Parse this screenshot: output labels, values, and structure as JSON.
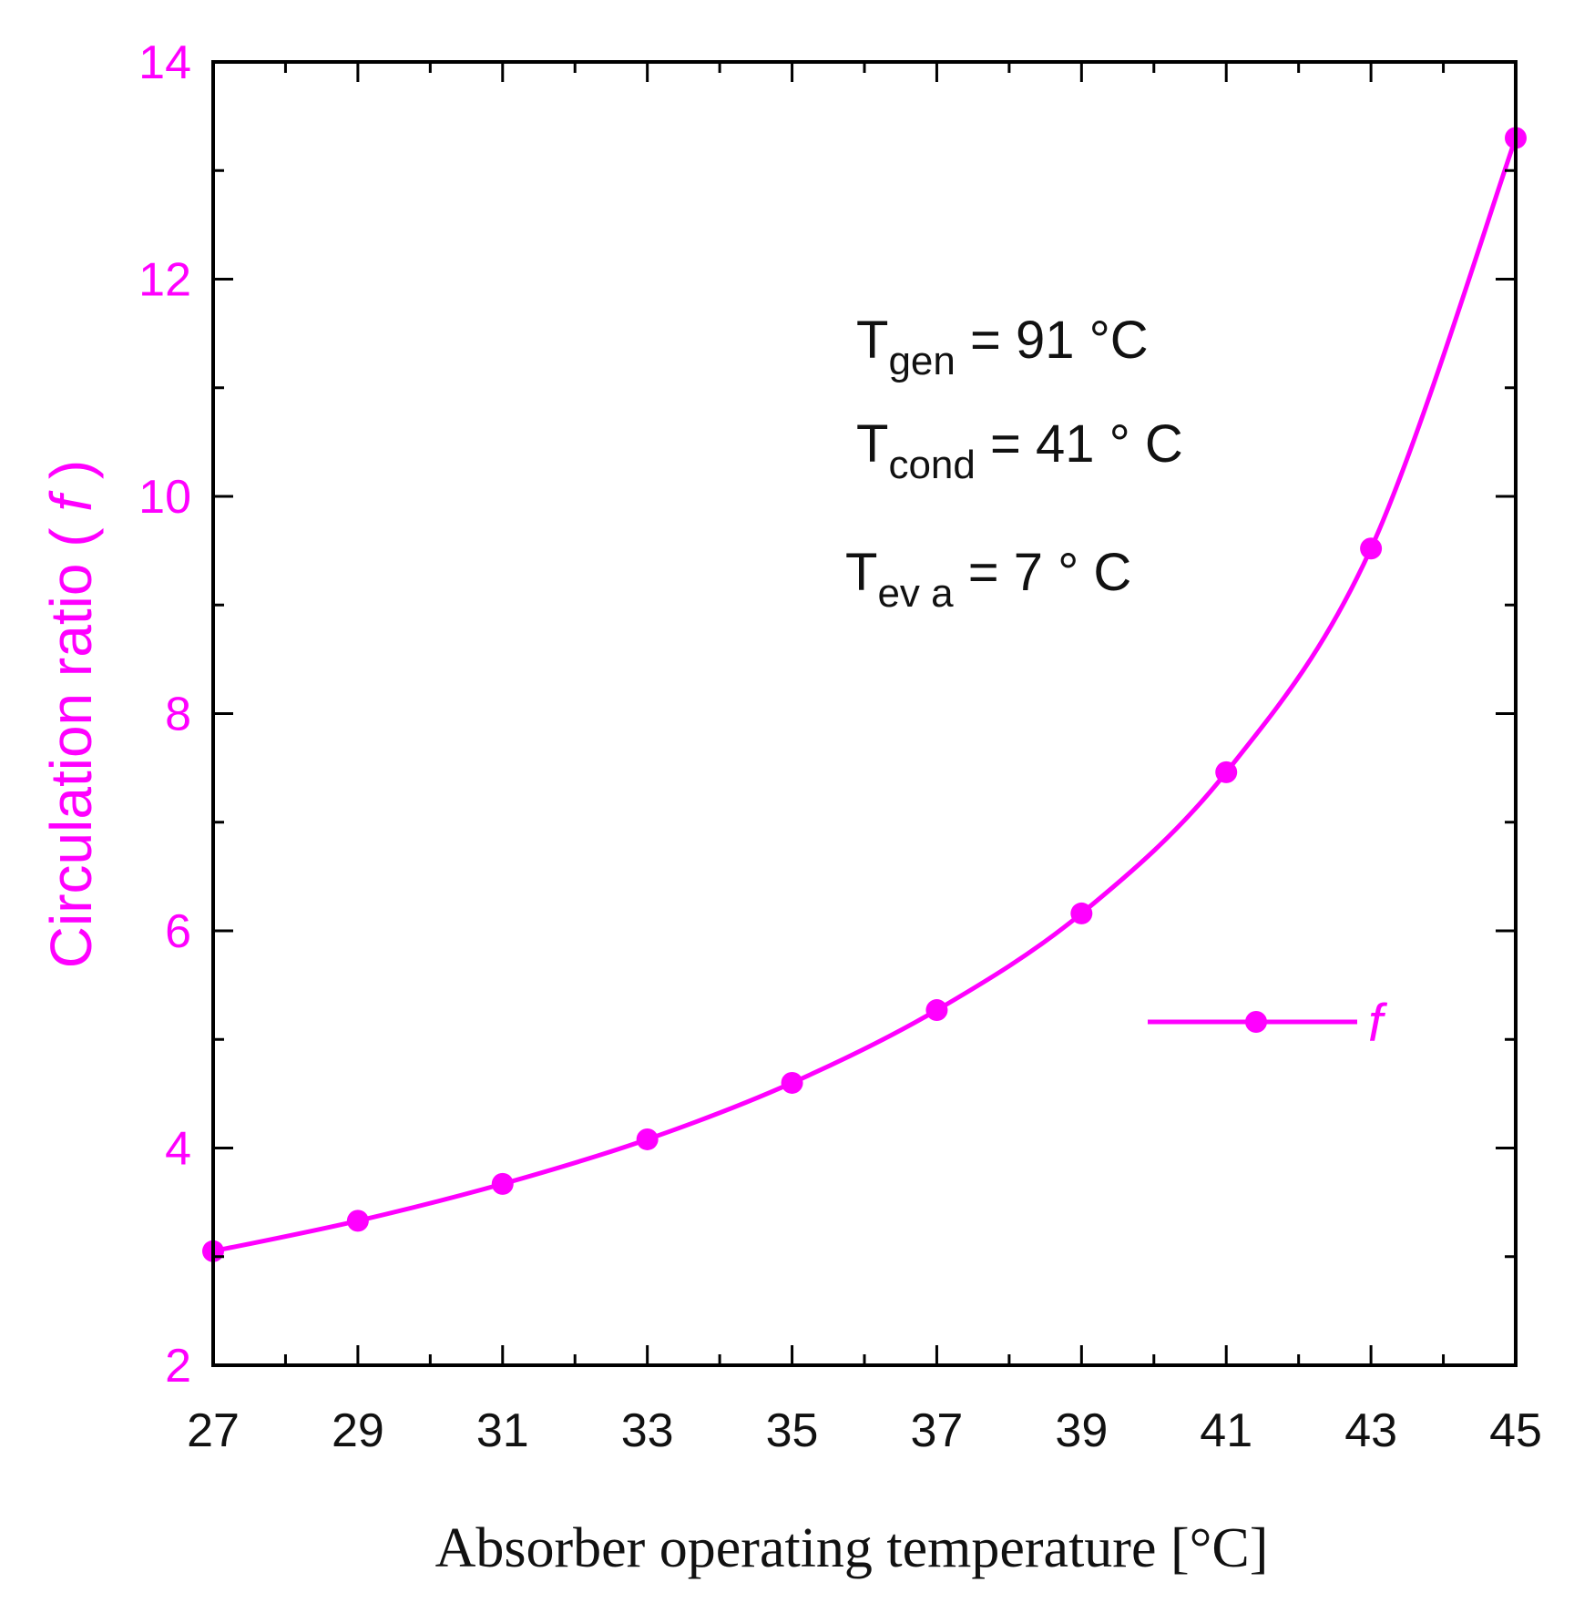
{
  "chart_data": {
    "type": "line",
    "title": "",
    "xlabel": "Absorber operating temperature [°C]",
    "ylabel": "Circulation ratio ( f )",
    "ylabel_parts": {
      "text": "Circulation ratio (",
      "var": "f",
      "close": ")"
    },
    "xlim": [
      27,
      45
    ],
    "ylim": [
      2,
      14
    ],
    "xticks": [
      27,
      29,
      31,
      33,
      35,
      37,
      39,
      41,
      43,
      45
    ],
    "yticks": [
      2,
      4,
      6,
      8,
      10,
      12,
      14
    ],
    "grid": false,
    "legend_position": "right-middle",
    "series": [
      {
        "name": "f",
        "color": "#ff00ff",
        "x": [
          27,
          29,
          31,
          33,
          35,
          37,
          39,
          41,
          43,
          45
        ],
        "y": [
          3.05,
          3.33,
          3.67,
          4.08,
          4.6,
          5.27,
          6.16,
          7.46,
          9.52,
          13.3
        ]
      }
    ],
    "annotations": [
      {
        "main": "T",
        "sub": "gen",
        "rest": " = 91 °C"
      },
      {
        "main": "T",
        "sub": "cond",
        "rest": " = 41 ° C"
      },
      {
        "main": "T",
        "sub": "ev a",
        "rest": " = 7 ° C"
      }
    ]
  }
}
